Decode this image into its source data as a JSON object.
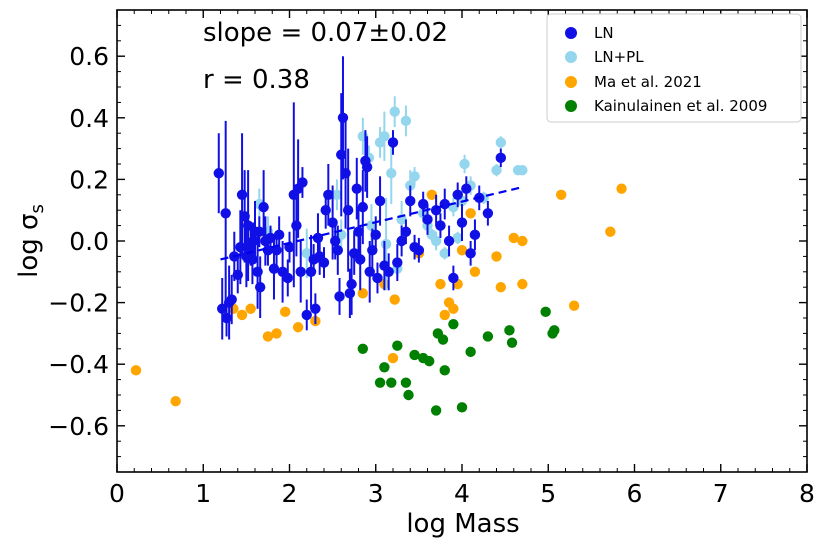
{
  "chart_data": {
    "type": "scatter",
    "title": "",
    "xlabel": "log Mass",
    "ylabel_base": "log σ",
    "ylabel_sub": "s",
    "xlim": [
      0,
      8
    ],
    "ylim": [
      -0.75,
      0.75
    ],
    "xticks": [
      0,
      1,
      2,
      3,
      4,
      5,
      6,
      7,
      8
    ],
    "yticks": [
      -0.6,
      -0.4,
      -0.2,
      0.0,
      0.2,
      0.4,
      0.6
    ],
    "ytick_labels": [
      "−0.6",
      "−0.4",
      "−0.2",
      "0.0",
      "0.2",
      "0.4",
      "0.6"
    ],
    "annotations": [
      {
        "text": "slope = 0.07±0.02"
      },
      {
        "text": "r = 0.38"
      }
    ],
    "fit_line": {
      "style": "dashed",
      "color": "#0000ee",
      "x": [
        1.2,
        4.7
      ],
      "y": [
        -0.06,
        0.175
      ]
    },
    "series": [
      {
        "name": "LN",
        "color": "#1010e6",
        "points": [
          [
            1.18,
            0.22,
            0.13
          ],
          [
            1.22,
            -0.22,
            0.1
          ],
          [
            1.26,
            0.09,
            0.3
          ],
          [
            1.3,
            -0.2,
            0.12
          ],
          [
            1.33,
            -0.19,
            0.08
          ],
          [
            1.36,
            -0.05,
            0.08
          ],
          [
            1.4,
            -0.11,
            0.06
          ],
          [
            1.43,
            -0.02,
            0.12
          ],
          [
            1.45,
            0.15,
            0.2
          ],
          [
            1.48,
            0.08,
            0.15
          ],
          [
            1.5,
            -0.05,
            0.1
          ],
          [
            1.52,
            0.05,
            0.18
          ],
          [
            1.55,
            -0.02,
            0.06
          ],
          [
            1.57,
            -0.06,
            0.08
          ],
          [
            1.6,
            0.03,
            0.1
          ],
          [
            1.63,
            -0.1,
            0.12
          ],
          [
            1.66,
            -0.15,
            0.1
          ],
          [
            1.7,
            0.11,
            0.12
          ],
          [
            1.72,
            0.0,
            0.08
          ],
          [
            1.75,
            -0.03,
            0.05
          ],
          [
            1.78,
            0.01,
            0.04
          ],
          [
            1.82,
            -0.09,
            0.1
          ],
          [
            1.85,
            -0.03,
            0.06
          ],
          [
            1.88,
            0.02,
            0.06
          ],
          [
            1.92,
            -0.1,
            0.1
          ],
          [
            2.0,
            -0.02,
            0.05
          ],
          [
            2.05,
            0.15,
            0.3
          ],
          [
            2.1,
            0.17,
            0.16
          ],
          [
            2.13,
            -0.1,
            0.1
          ],
          [
            2.15,
            0.19,
            0.05
          ],
          [
            2.2,
            -0.24,
            0.05
          ],
          [
            2.25,
            -0.1,
            0.12
          ],
          [
            2.3,
            -0.22,
            0.05
          ],
          [
            2.33,
            0.01,
            0.08
          ],
          [
            2.4,
            -0.07,
            0.05
          ],
          [
            2.45,
            0.15,
            0.1
          ],
          [
            2.5,
            0.06,
            0.12
          ],
          [
            2.53,
            0.0,
            0.06
          ],
          [
            2.56,
            -0.03,
            0.08
          ],
          [
            2.6,
            0.28,
            0.2
          ],
          [
            2.62,
            0.4,
            0.2
          ],
          [
            2.65,
            0.22,
            0.18
          ],
          [
            2.68,
            0.1,
            0.2
          ],
          [
            2.72,
            -0.14,
            0.1
          ],
          [
            2.75,
            -0.04,
            0.07
          ],
          [
            2.78,
            0.17,
            0.1
          ],
          [
            2.8,
            0.03,
            0.08
          ],
          [
            2.82,
            -0.06,
            0.1
          ],
          [
            2.85,
            0.11,
            0.12
          ],
          [
            2.88,
            0.26,
            0.1
          ],
          [
            2.9,
            0.24,
            0.1
          ],
          [
            2.93,
            -0.1,
            0.1
          ],
          [
            2.96,
            -0.03,
            0.07
          ],
          [
            3.0,
            0.02,
            0.06
          ],
          [
            3.05,
            0.13,
            0.08
          ],
          [
            3.1,
            -0.08,
            0.08
          ],
          [
            3.15,
            -0.1,
            0.06
          ],
          [
            3.2,
            0.32,
            0.04
          ],
          [
            3.25,
            -0.07,
            0.06
          ],
          [
            3.3,
            0.0,
            0.05
          ],
          [
            3.35,
            0.03,
            0.04
          ],
          [
            3.4,
            0.13,
            0.05
          ],
          [
            3.5,
            -0.03,
            0.04
          ],
          [
            3.6,
            0.07,
            0.05
          ],
          [
            3.7,
            0.1,
            0.05
          ],
          [
            3.8,
            0.12,
            0.05
          ],
          [
            3.85,
            0.0,
            0.05
          ],
          [
            3.9,
            -0.12,
            0.04
          ],
          [
            3.95,
            0.15,
            0.04
          ],
          [
            4.0,
            0.06,
            0.06
          ],
          [
            4.05,
            0.17,
            0.04
          ],
          [
            4.1,
            -0.04,
            0.04
          ],
          [
            4.2,
            0.14,
            0.04
          ],
          [
            4.3,
            0.09,
            0.04
          ],
          [
            4.45,
            0.27,
            0.03
          ],
          [
            2.35,
            -0.05,
            0.06
          ],
          [
            1.98,
            -0.12,
            0.06
          ],
          [
            2.08,
            0.05,
            0.1
          ],
          [
            2.7,
            -0.17,
            0.08
          ],
          [
            3.45,
            -0.02,
            0.04
          ],
          [
            3.55,
            0.12,
            0.04
          ],
          [
            1.27,
            -0.25,
            0.06
          ],
          [
            1.65,
            0.03,
            0.05
          ],
          [
            2.42,
            0.1,
            0.06
          ],
          [
            2.58,
            -0.18,
            0.06
          ],
          [
            3.75,
            0.05,
            0.04
          ],
          [
            4.15,
            0.02,
            0.05
          ],
          [
            1.58,
            0.0,
            0.06
          ],
          [
            2.28,
            -0.06,
            0.05
          ],
          [
            3.02,
            -0.12,
            0.05
          ]
        ]
      },
      {
        "name": "LN+PL",
        "color": "#94d6ee",
        "points": [
          [
            1.65,
            0.12,
            0.05
          ],
          [
            1.75,
            0.03,
            0.05
          ],
          [
            2.2,
            -0.04,
            0.08
          ],
          [
            2.55,
            0.15,
            0.05
          ],
          [
            2.6,
            0.02,
            0.05
          ],
          [
            2.85,
            0.34,
            0.06
          ],
          [
            2.95,
            0.05,
            0.07
          ],
          [
            3.05,
            0.32,
            0.05
          ],
          [
            3.1,
            0.34,
            0.08
          ],
          [
            3.12,
            -0.01,
            0.15
          ],
          [
            3.18,
            0.22,
            0.1
          ],
          [
            3.22,
            0.42,
            0.05
          ],
          [
            3.3,
            0.07,
            0.06
          ],
          [
            3.35,
            0.39,
            0.05
          ],
          [
            3.4,
            0.18,
            0.05
          ],
          [
            3.45,
            0.21,
            0.03
          ],
          [
            3.55,
            0.09,
            0.03
          ],
          [
            3.6,
            0.05,
            0.03
          ],
          [
            3.7,
            0.0,
            0.03
          ],
          [
            3.75,
            0.05,
            0.02
          ],
          [
            3.8,
            -0.04,
            0.02
          ],
          [
            3.9,
            0.11,
            0.03
          ],
          [
            4.0,
            0.13,
            0.03
          ],
          [
            4.03,
            0.25,
            0.03
          ],
          [
            4.1,
            0.18,
            0.03
          ],
          [
            4.4,
            0.23,
            0.02
          ],
          [
            4.45,
            0.32,
            0.02
          ],
          [
            4.65,
            0.23,
            0.01
          ],
          [
            4.7,
            0.23,
            0.01
          ],
          [
            3.95,
            0.01,
            0.02
          ],
          [
            3.25,
            -0.09,
            0.03
          ],
          [
            2.92,
            0.27,
            0.04
          ],
          [
            3.65,
            0.02,
            0.02
          ],
          [
            4.25,
            0.14,
            0.02
          ]
        ]
      },
      {
        "name": "Ma et al. 2021",
        "color": "#ffa500",
        "points": [
          [
            0.22,
            -0.42
          ],
          [
            0.68,
            -0.52
          ],
          [
            1.35,
            -0.22
          ],
          [
            1.45,
            -0.24
          ],
          [
            1.55,
            -0.22
          ],
          [
            1.75,
            -0.31
          ],
          [
            1.85,
            -0.3
          ],
          [
            1.95,
            -0.23
          ],
          [
            2.1,
            -0.28
          ],
          [
            2.3,
            -0.26
          ],
          [
            2.85,
            -0.17
          ],
          [
            3.1,
            -0.14
          ],
          [
            3.2,
            -0.38
          ],
          [
            3.22,
            -0.19
          ],
          [
            3.5,
            -0.04
          ],
          [
            3.65,
            0.15
          ],
          [
            3.75,
            -0.14
          ],
          [
            3.8,
            -0.24
          ],
          [
            3.85,
            -0.2
          ],
          [
            3.9,
            -0.22
          ],
          [
            3.95,
            -0.14
          ],
          [
            4.1,
            0.09
          ],
          [
            4.15,
            -0.1
          ],
          [
            4.45,
            -0.15
          ],
          [
            4.6,
            0.01
          ],
          [
            4.7,
            0.0
          ],
          [
            4.7,
            -0.14
          ],
          [
            5.15,
            0.15
          ],
          [
            5.3,
            -0.21
          ],
          [
            5.72,
            0.03
          ],
          [
            5.85,
            0.17
          ],
          [
            4.0,
            -0.03
          ],
          [
            4.4,
            -0.05
          ]
        ]
      },
      {
        "name": "Kainulainen et al. 2009",
        "color": "#008000",
        "points": [
          [
            2.85,
            -0.35
          ],
          [
            3.05,
            -0.46
          ],
          [
            3.1,
            -0.41
          ],
          [
            3.18,
            -0.46
          ],
          [
            3.25,
            -0.34
          ],
          [
            3.35,
            -0.46
          ],
          [
            3.38,
            -0.5
          ],
          [
            3.45,
            -0.37
          ],
          [
            3.55,
            -0.38
          ],
          [
            3.62,
            -0.39
          ],
          [
            3.7,
            -0.55
          ],
          [
            3.72,
            -0.3
          ],
          [
            3.78,
            -0.32
          ],
          [
            3.8,
            -0.42
          ],
          [
            3.9,
            -0.27
          ],
          [
            4.0,
            -0.54
          ],
          [
            4.1,
            -0.36
          ],
          [
            4.3,
            -0.31
          ],
          [
            4.55,
            -0.29
          ],
          [
            4.58,
            -0.33
          ],
          [
            4.97,
            -0.23
          ],
          [
            5.05,
            -0.3
          ],
          [
            5.07,
            -0.29
          ]
        ]
      }
    ]
  }
}
